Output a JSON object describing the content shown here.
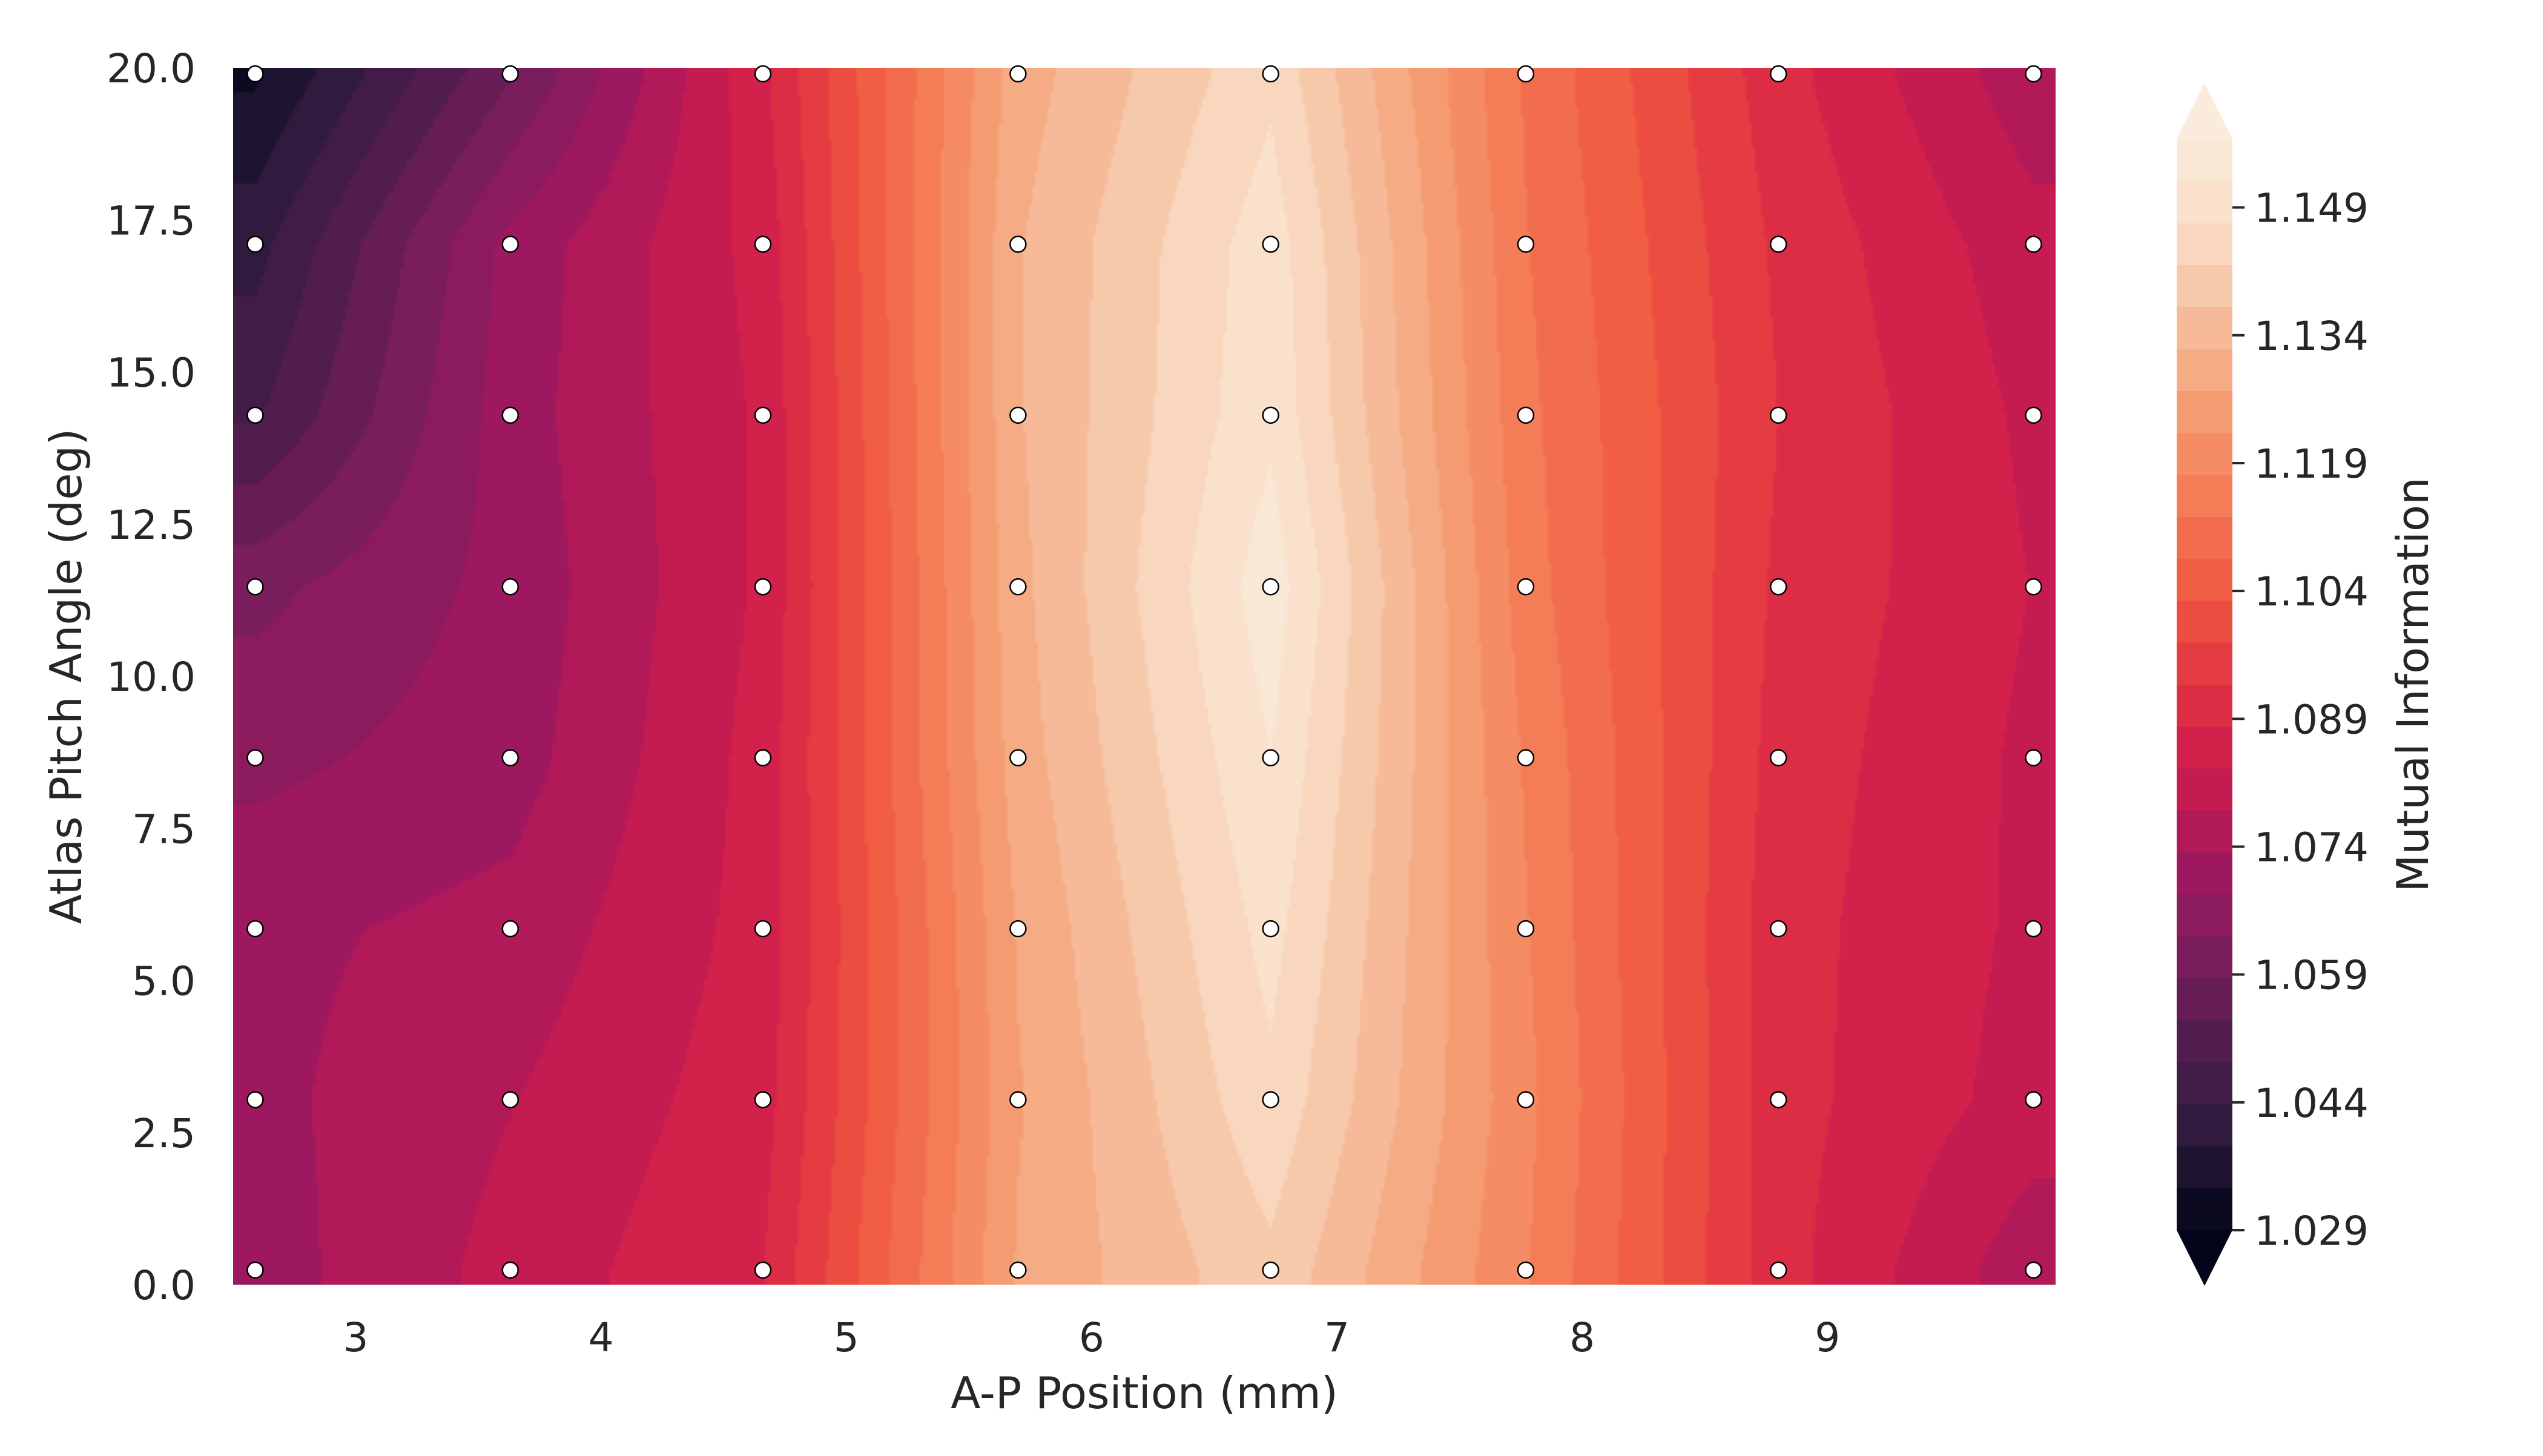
{
  "colors": {
    "cmap_stops": [
      "#03051a",
      "#2b1a3a",
      "#4e1d4d",
      "#7a1d5c",
      "#a0185f",
      "#cb1b4f",
      "#e13342",
      "#f05940",
      "#f47a55",
      "#f59b71",
      "#f6bd9b",
      "#f9dcc4",
      "#faebdd"
    ],
    "marker_fill": "#ffffff",
    "marker_edge": "#000000"
  },
  "chart_data": {
    "type": "heatmap",
    "title": "",
    "xlabel": "A-P Position (mm)",
    "ylabel": "Atlas Pitch Angle (deg)",
    "xlim": [
      2.5,
      9.93
    ],
    "ylim": [
      0.0,
      20.0
    ],
    "x_ticks": [
      3,
      4,
      5,
      6,
      7,
      8,
      9
    ],
    "x_tick_labels": [
      "3",
      "4",
      "5",
      "6",
      "7",
      "8",
      "9"
    ],
    "y_ticks": [
      0.0,
      2.5,
      5.0,
      7.5,
      10.0,
      12.5,
      15.0,
      17.5,
      20.0
    ],
    "y_tick_labels": [
      "0.0",
      "2.5",
      "5.0",
      "7.5",
      "10.0",
      "12.5",
      "15.0",
      "17.5",
      "20.0"
    ],
    "x_grid": [
      2.59,
      3.63,
      4.66,
      5.7,
      6.73,
      7.77,
      8.8,
      9.84
    ],
    "y_grid": [
      0.24,
      3.04,
      5.85,
      8.66,
      11.47,
      14.29,
      17.1,
      19.9
    ],
    "z": [
      [
        1.071,
        1.08,
        1.088,
        1.128,
        1.141,
        1.118,
        1.09,
        1.075
      ],
      [
        1.072,
        1.078,
        1.086,
        1.127,
        1.146,
        1.119,
        1.09,
        1.081
      ],
      [
        1.072,
        1.075,
        1.085,
        1.128,
        1.149,
        1.118,
        1.09,
        1.082
      ],
      [
        1.067,
        1.071,
        1.085,
        1.13,
        1.152,
        1.117,
        1.091,
        1.082
      ],
      [
        1.062,
        1.07,
        1.084,
        1.131,
        1.155,
        1.115,
        1.092,
        1.083
      ],
      [
        1.048,
        1.071,
        1.084,
        1.132,
        1.151,
        1.114,
        1.093,
        1.082
      ],
      [
        1.042,
        1.07,
        1.085,
        1.132,
        1.15,
        1.113,
        1.092,
        1.08
      ],
      [
        1.033,
        1.058,
        1.087,
        1.13,
        1.146,
        1.112,
        1.09,
        1.075
      ]
    ],
    "grid": false,
    "colorbar": {
      "label": "Mutual Information",
      "ticks": [
        1.029,
        1.044,
        1.059,
        1.074,
        1.089,
        1.104,
        1.119,
        1.134,
        1.149
      ],
      "tick_labels": [
        "1.029",
        "1.044",
        "1.059",
        "1.074",
        "1.089",
        "1.104",
        "1.119",
        "1.134",
        "1.149"
      ],
      "range": [
        1.029,
        1.157
      ],
      "extend": "both",
      "levels": 26
    }
  }
}
